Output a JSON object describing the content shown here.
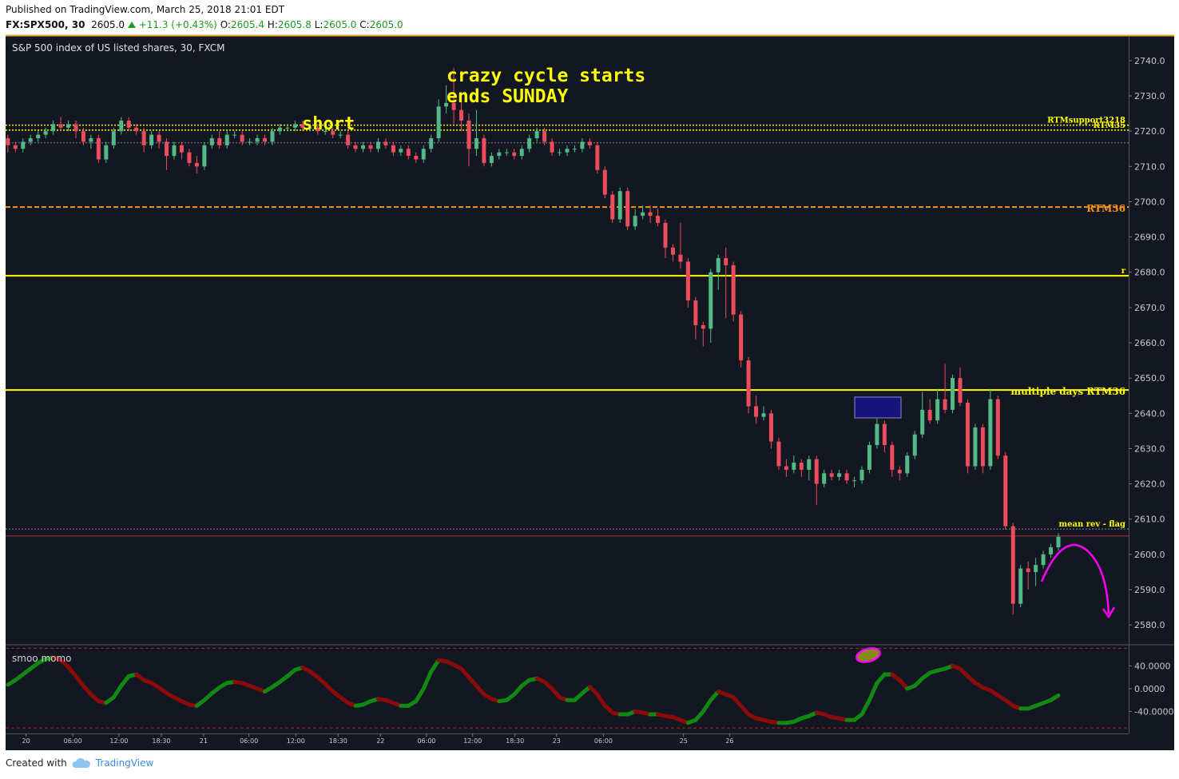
{
  "header": {
    "published": "Published on TradingView.com, March 25, 2018 21:01 EDT",
    "symbol": "FX:SPX500, 30",
    "last": "2605.0",
    "change": "+11.3 (+0.43%)",
    "ohlc": [
      {
        "label": "O:",
        "value": "2605.4"
      },
      {
        "label": "H:",
        "value": "2605.8"
      },
      {
        "label": "L:",
        "value": "2605.0"
      },
      {
        "label": "C:",
        "value": "2605.0"
      }
    ]
  },
  "footer": {
    "created": "Created with",
    "brand": "TradingView"
  },
  "chart_data": [
    {
      "type": "candlestick",
      "legend": "S&P 500 index of US listed shares, 30, FXCM",
      "up_color": "#53b987",
      "down_color": "#eb4d5c",
      "xlim": [
        -0.3,
        148.3
      ],
      "ylim": [
        2574.6,
        2747.0
      ],
      "yticks": [
        {
          "value": 2580,
          "label": "2580.0"
        },
        {
          "value": 2590,
          "label": "2590.0"
        },
        {
          "value": 2600,
          "label": "2600.0"
        },
        {
          "value": 2610,
          "label": "2610.0"
        },
        {
          "value": 2620,
          "label": "2620.0"
        },
        {
          "value": 2630,
          "label": "2630.0"
        },
        {
          "value": 2640,
          "label": "2640.0"
        },
        {
          "value": 2650,
          "label": "2650.0"
        },
        {
          "value": 2660,
          "label": "2660.0"
        },
        {
          "value": 2670,
          "label": "2670.0"
        },
        {
          "value": 2680,
          "label": "2680.0"
        },
        {
          "value": 2690,
          "label": "2690.0"
        },
        {
          "value": 2700,
          "label": "2700.0"
        },
        {
          "value": 2710,
          "label": "2710.0"
        },
        {
          "value": 2720,
          "label": "2720.0"
        },
        {
          "value": 2730,
          "label": "2730.0"
        },
        {
          "value": 2740,
          "label": "2740.0"
        }
      ],
      "levels": [
        {
          "label": "RTMsupport3218",
          "value": 2721.7,
          "color": "#ffff00",
          "style": "dotted",
          "width": 1.5
        },
        {
          "label": "RTM35",
          "value": 2720.3,
          "color": "#ffff00",
          "style": "dotted",
          "width": 1.5
        },
        {
          "value": 2716.7,
          "color": "#888888",
          "style": "dotted",
          "width": 1
        },
        {
          "label": "RTM36",
          "value": 2698.5,
          "color": "#f7931a",
          "style": "dashed",
          "width": 2
        },
        {
          "label": "r",
          "value": 2679.0,
          "color": "#ffff00",
          "style": "solid",
          "width": 2
        },
        {
          "label": "multiple days RTM36",
          "value": 2646.6,
          "color": "#ffff00",
          "style": "solid",
          "width": 2
        },
        {
          "label": "mean rev - flag",
          "value": 2607.2,
          "color": "#888888",
          "style": "dotted",
          "width": 1
        },
        {
          "value": 2605.2,
          "color": "#b0303a",
          "style": "solid",
          "width": 1
        }
      ],
      "annotations": [
        "short",
        "crazy cycle starts",
        "ends SUNDAY"
      ],
      "ohlc": [
        [
          2718,
          2719,
          2714,
          2716
        ],
        [
          2716,
          2717,
          2714,
          2715
        ],
        [
          2715,
          2718,
          2714,
          2717
        ],
        [
          2717,
          2719,
          2716,
          2718
        ],
        [
          2718,
          2720,
          2717,
          2719
        ],
        [
          2719,
          2721,
          2718,
          2720
        ],
        [
          2720,
          2723,
          2719,
          2722
        ],
        [
          2722,
          2724,
          2720,
          2721
        ],
        [
          2721,
          2723,
          2720,
          2722
        ],
        [
          2722,
          2723,
          2718,
          2720
        ],
        [
          2720,
          2721,
          2716,
          2717
        ],
        [
          2717,
          2719,
          2715,
          2718
        ],
        [
          2718,
          2719,
          2711,
          2712
        ],
        [
          2712,
          2717,
          2711,
          2716
        ],
        [
          2716,
          2721,
          2715,
          2720
        ],
        [
          2720,
          2724,
          2719,
          2723
        ],
        [
          2723,
          2724,
          2720,
          2721
        ],
        [
          2721,
          2722,
          2719,
          2720
        ],
        [
          2720,
          2721,
          2714,
          2716
        ],
        [
          2716,
          2720,
          2715,
          2719
        ],
        [
          2719,
          2720,
          2715,
          2717
        ],
        [
          2717,
          2718,
          2709,
          2713
        ],
        [
          2713,
          2717,
          2712,
          2716
        ],
        [
          2716,
          2717,
          2712,
          2714
        ],
        [
          2714,
          2715,
          2710,
          2711
        ],
        [
          2711,
          2713,
          2708,
          2710
        ],
        [
          2710,
          2717,
          2709,
          2716
        ],
        [
          2716,
          2719,
          2715,
          2718
        ],
        [
          2718,
          2720,
          2715,
          2716
        ],
        [
          2716,
          2720,
          2715,
          2719
        ],
        [
          2719,
          2720,
          2718,
          2719
        ],
        [
          2719,
          2720,
          2716,
          2717
        ],
        [
          2717,
          2718,
          2716,
          2717
        ],
        [
          2717,
          2719,
          2716,
          2718
        ],
        [
          2718,
          2719,
          2716,
          2717
        ],
        [
          2717,
          2721,
          2716,
          2720
        ],
        [
          2720,
          2722,
          2719,
          2721
        ],
        [
          2721,
          2722,
          2720,
          2721
        ],
        [
          2721,
          2723,
          2720,
          2722
        ],
        [
          2722,
          2723,
          2720,
          2721
        ],
        [
          2721,
          2722,
          2720,
          2721
        ],
        [
          2721,
          2722,
          2719,
          2720
        ],
        [
          2720,
          2721,
          2719,
          2720
        ],
        [
          2720,
          2721,
          2718,
          2719
        ],
        [
          2719,
          2720,
          2718,
          2719
        ],
        [
          2719,
          2720,
          2715,
          2716
        ],
        [
          2716,
          2717,
          2714,
          2715
        ],
        [
          2715,
          2717,
          2714,
          2716
        ],
        [
          2716,
          2717,
          2714,
          2715
        ],
        [
          2715,
          2718,
          2714,
          2717
        ],
        [
          2717,
          2718,
          2715,
          2716
        ],
        [
          2716,
          2717,
          2713,
          2714
        ],
        [
          2714,
          2716,
          2713,
          2715
        ],
        [
          2715,
          2716,
          2712,
          2713
        ],
        [
          2713,
          2714,
          2711,
          2712
        ],
        [
          2712,
          2716,
          2711,
          2715
        ],
        [
          2715,
          2719,
          2714,
          2718
        ],
        [
          2718,
          2729,
          2717,
          2727
        ],
        [
          2727,
          2733,
          2725,
          2728
        ],
        [
          2728,
          2738,
          2722,
          2726
        ],
        [
          2726,
          2730,
          2720,
          2723
        ],
        [
          2723,
          2725,
          2710,
          2715
        ],
        [
          2715,
          2726,
          2713,
          2718
        ],
        [
          2718,
          2719,
          2710,
          2711
        ],
        [
          2711,
          2714,
          2710,
          2713
        ],
        [
          2713,
          2715,
          2712,
          2714
        ],
        [
          2714,
          2715,
          2713,
          2714
        ],
        [
          2714,
          2715,
          2712,
          2713
        ],
        [
          2713,
          2716,
          2712,
          2715
        ],
        [
          2715,
          2719,
          2714,
          2718
        ],
        [
          2718,
          2721,
          2717,
          2720
        ],
        [
          2720,
          2721,
          2716,
          2717
        ],
        [
          2717,
          2718,
          2713,
          2714
        ],
        [
          2714,
          2715,
          2713,
          2714
        ],
        [
          2714,
          2716,
          2713,
          2715
        ],
        [
          2715,
          2716,
          2714,
          2715
        ],
        [
          2715,
          2718,
          2714,
          2717
        ],
        [
          2717,
          2718,
          2715,
          2716
        ],
        [
          2716,
          2717,
          2708,
          2709
        ],
        [
          2709,
          2710,
          2701,
          2702
        ],
        [
          2702,
          2703,
          2694,
          2695
        ],
        [
          2695,
          2704,
          2694,
          2703
        ],
        [
          2703,
          2704,
          2692,
          2693
        ],
        [
          2693,
          2698,
          2692,
          2696
        ],
        [
          2696,
          2699,
          2695,
          2697
        ],
        [
          2697,
          2699,
          2694,
          2696
        ],
        [
          2696,
          2698,
          2693,
          2694
        ],
        [
          2694,
          2695,
          2684,
          2687
        ],
        [
          2687,
          2688,
          2683,
          2685
        ],
        [
          2685,
          2694,
          2681,
          2683
        ],
        [
          2683,
          2684,
          2670,
          2672
        ],
        [
          2672,
          2673,
          2661,
          2665
        ],
        [
          2665,
          2666,
          2659,
          2664
        ],
        [
          2664,
          2681,
          2660,
          2680
        ],
        [
          2680,
          2685,
          2675,
          2684
        ],
        [
          2684,
          2687,
          2667,
          2682
        ],
        [
          2682,
          2683,
          2666,
          2668
        ],
        [
          2668,
          2669,
          2653,
          2655
        ],
        [
          2655,
          2656,
          2640,
          2642
        ],
        [
          2642,
          2645,
          2637,
          2639
        ],
        [
          2639,
          2642,
          2638,
          2640
        ],
        [
          2640,
          2641,
          2630,
          2632
        ],
        [
          2632,
          2633,
          2624,
          2625
        ],
        [
          2625,
          2627,
          2622,
          2624
        ],
        [
          2624,
          2628,
          2623,
          2626
        ],
        [
          2626,
          2627,
          2622,
          2624
        ],
        [
          2624,
          2628,
          2621,
          2627
        ],
        [
          2627,
          2628,
          2614,
          2620
        ],
        [
          2620,
          2624,
          2619,
          2623
        ],
        [
          2623,
          2624,
          2621,
          2622
        ],
        [
          2622,
          2624,
          2621,
          2623
        ],
        [
          2623,
          2624,
          2620,
          2621
        ],
        [
          2621,
          2622,
          2619,
          2621
        ],
        [
          2621,
          2625,
          2620,
          2624
        ],
        [
          2624,
          2632,
          2623,
          2631
        ],
        [
          2631,
          2640,
          2630,
          2637
        ],
        [
          2637,
          2638,
          2629,
          2631
        ],
        [
          2631,
          2632,
          2622,
          2624
        ],
        [
          2624,
          2625,
          2621,
          2623
        ],
        [
          2623,
          2629,
          2622,
          2628
        ],
        [
          2628,
          2635,
          2627,
          2634
        ],
        [
          2634,
          2646,
          2633,
          2641
        ],
        [
          2641,
          2644,
          2637,
          2638
        ],
        [
          2638,
          2647,
          2637,
          2644
        ],
        [
          2644,
          2654,
          2640,
          2641
        ],
        [
          2641,
          2651,
          2640,
          2650
        ],
        [
          2650,
          2653,
          2642,
          2643
        ],
        [
          2643,
          2644,
          2623,
          2625
        ],
        [
          2625,
          2637,
          2624,
          2636
        ],
        [
          2636,
          2637,
          2623,
          2625
        ],
        [
          2625,
          2647,
          2624,
          2644
        ],
        [
          2644,
          2645,
          2627,
          2628
        ],
        [
          2628,
          2629,
          2607,
          2608
        ],
        [
          2608,
          2609,
          2583,
          2586
        ],
        [
          2586,
          2597,
          2585,
          2596
        ],
        [
          2596,
          2598,
          2590,
          2595
        ],
        [
          2595,
          2599,
          2591,
          2597
        ],
        [
          2597,
          2601,
          2596,
          2600
        ],
        [
          2600,
          2603,
          2599,
          2602
        ],
        [
          2602,
          2606,
          2601,
          2605
        ]
      ]
    },
    {
      "type": "momentum",
      "legend": "smoo momo",
      "up_color": "#118811",
      "down_color": "#8b0a0a",
      "xlim": [
        -0.3,
        148.3
      ],
      "ylim": [
        -78.6,
        75.7
      ],
      "yticks": [
        {
          "value": 40,
          "label": "40.0000"
        },
        {
          "value": 0,
          "label": "0.0000"
        },
        {
          "value": -40,
          "label": "-40.0000"
        }
      ],
      "levels": [
        {
          "value": 71,
          "color": "#a52a2a"
        },
        {
          "value": -69,
          "color": "#a52a2a"
        }
      ],
      "xticks": [
        {
          "value": 2.4,
          "label": "20"
        },
        {
          "value": 8.6,
          "label": "06:00"
        },
        {
          "value": 14.7,
          "label": "12:00"
        },
        {
          "value": 20.3,
          "label": "18:30"
        },
        {
          "value": 25.9,
          "label": "21"
        },
        {
          "value": 31.9,
          "label": "06:00"
        },
        {
          "value": 38.1,
          "label": "12:00"
        },
        {
          "value": 43.7,
          "label": "18:30"
        },
        {
          "value": 49.3,
          "label": "22"
        },
        {
          "value": 55.4,
          "label": "06:00"
        },
        {
          "value": 61.5,
          "label": "12:00"
        },
        {
          "value": 67.1,
          "label": "18:30"
        },
        {
          "value": 72.6,
          "label": "23"
        },
        {
          "value": 78.8,
          "label": "06:00"
        },
        {
          "value": 89.4,
          "label": "25"
        },
        {
          "value": 95.5,
          "label": "26"
        }
      ],
      "values": [
        7,
        15,
        25,
        35,
        45,
        52,
        55,
        50,
        38,
        22,
        5,
        -10,
        -22,
        -25,
        -15,
        5,
        22,
        25,
        15,
        10,
        2,
        -8,
        -15,
        -22,
        -28,
        -30,
        -20,
        -8,
        2,
        10,
        12,
        10,
        5,
        0,
        -5,
        3,
        12,
        22,
        33,
        37,
        30,
        20,
        8,
        -5,
        -15,
        -25,
        -30,
        -28,
        -22,
        -18,
        -20,
        -25,
        -30,
        -30,
        -22,
        0,
        30,
        50,
        48,
        42,
        35,
        20,
        5,
        -10,
        -18,
        -22,
        -20,
        -10,
        5,
        15,
        18,
        12,
        0,
        -15,
        -20,
        -20,
        -8,
        3,
        -10,
        -30,
        -42,
        -45,
        -45,
        -40,
        -42,
        -45,
        -45,
        -48,
        -50,
        -55,
        -60,
        -55,
        -40,
        -20,
        -5,
        -10,
        -15,
        -30,
        -45,
        -52,
        -55,
        -58,
        -60,
        -60,
        -58,
        -52,
        -48,
        -42,
        -45,
        -50,
        -52,
        -55,
        -55,
        -45,
        -20,
        10,
        25,
        25,
        15,
        0,
        5,
        18,
        28,
        32,
        35,
        40,
        35,
        22,
        10,
        2,
        -3,
        -12,
        -20,
        -30,
        -35,
        -35,
        -30,
        -25,
        -20,
        -12
      ]
    }
  ]
}
